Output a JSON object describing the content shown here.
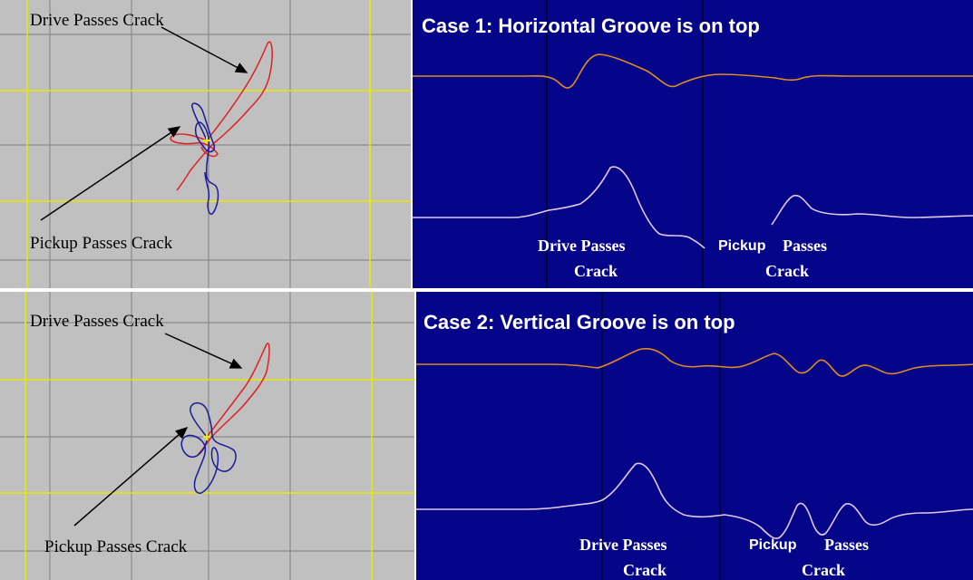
{
  "case1": {
    "title": "Case 1:  Horizontal Groove is on top",
    "lissajous": {
      "drive_label": "Drive Passes Crack",
      "pickup_label": "Pickup Passes Crack"
    },
    "scope": {
      "drive_label_line1": "Drive Passes",
      "drive_label_line2": "Crack",
      "pickup_label_line1": "Pickup",
      "pickup_label_line1b": "Passes",
      "pickup_label_line2": "Crack"
    }
  },
  "case2": {
    "title": "Case 2:  Vertical Groove is on top",
    "lissajous": {
      "drive_label": "Drive Passes Crack",
      "pickup_label": "Pickup Passes Crack"
    },
    "scope": {
      "drive_label_line1": "Drive Passes",
      "drive_label_line2": "Crack",
      "pickup_label_line1": "Pickup",
      "pickup_label_line1b": "Passes",
      "pickup_label_line2": "Crack"
    }
  },
  "colors": {
    "lissajous_bg": "#c0c0c0",
    "scope_bg": "#05058a",
    "drive_trace": "#e02020",
    "pickup_trace": "#1a1a9a",
    "grid_yellow": "#e8e800",
    "top_trace": "#e08a20",
    "bottom_trace": "#e0c8e8"
  }
}
